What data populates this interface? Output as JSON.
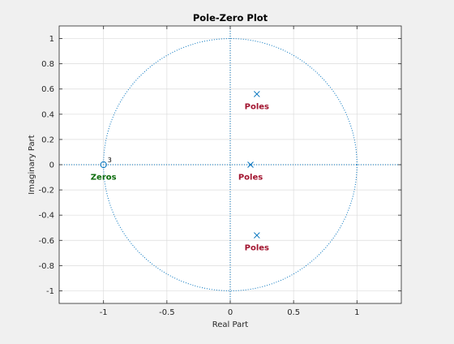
{
  "chart_data": {
    "type": "scatter",
    "title": "Pole-Zero Plot",
    "xlabel": "Real Part",
    "ylabel": "Imaginary Part",
    "xlim": [
      -1.35,
      1.35
    ],
    "ylim": [
      -1.1,
      1.1
    ],
    "xticks": [
      -1,
      -0.5,
      0,
      0.5,
      1
    ],
    "xtick_labels": [
      "-1",
      "-0.5",
      "0",
      "0.5",
      "1"
    ],
    "yticks": [
      1,
      0.8,
      0.6,
      0.4,
      0.2,
      0,
      -0.2,
      -0.4,
      -0.6,
      -0.8,
      -1
    ],
    "ytick_labels": [
      "1",
      "0.8",
      "0.6",
      "0.4",
      "0.2",
      "0",
      "-0.2",
      "-0.4",
      "-0.6",
      "-0.8",
      "-1"
    ],
    "grid": true,
    "unit_circle": true,
    "series": [
      {
        "name": "Poles",
        "marker": "x",
        "color": "#0072BD",
        "points": [
          {
            "x": 0.21,
            "y": 0.56
          },
          {
            "x": 0.16,
            "y": 0.0
          },
          {
            "x": 0.21,
            "y": -0.56
          }
        ]
      },
      {
        "name": "Zeros",
        "marker": "o",
        "color": "#0072BD",
        "points": [
          {
            "x": -1.0,
            "y": 0.0,
            "multiplicity": "3"
          }
        ]
      }
    ],
    "annotations": [
      {
        "text": "Poles",
        "x": 0.21,
        "y": 0.46,
        "color": "#a2142f"
      },
      {
        "text": "Poles",
        "x": 0.16,
        "y": -0.1,
        "color": "#a2142f"
      },
      {
        "text": "Poles",
        "x": 0.21,
        "y": -0.66,
        "color": "#a2142f"
      },
      {
        "text": "Zeros",
        "x": -1.0,
        "y": -0.1,
        "color": "#0a6b0a"
      }
    ],
    "colors": {
      "axes_bg": "#ffffff",
      "figure_bg": "#f0f0f0",
      "grid": "#dcdcdc",
      "axis": "#262626",
      "marker": "#0072BD",
      "pole_label": "#a2142f",
      "zero_label": "#0a6b0a"
    }
  }
}
